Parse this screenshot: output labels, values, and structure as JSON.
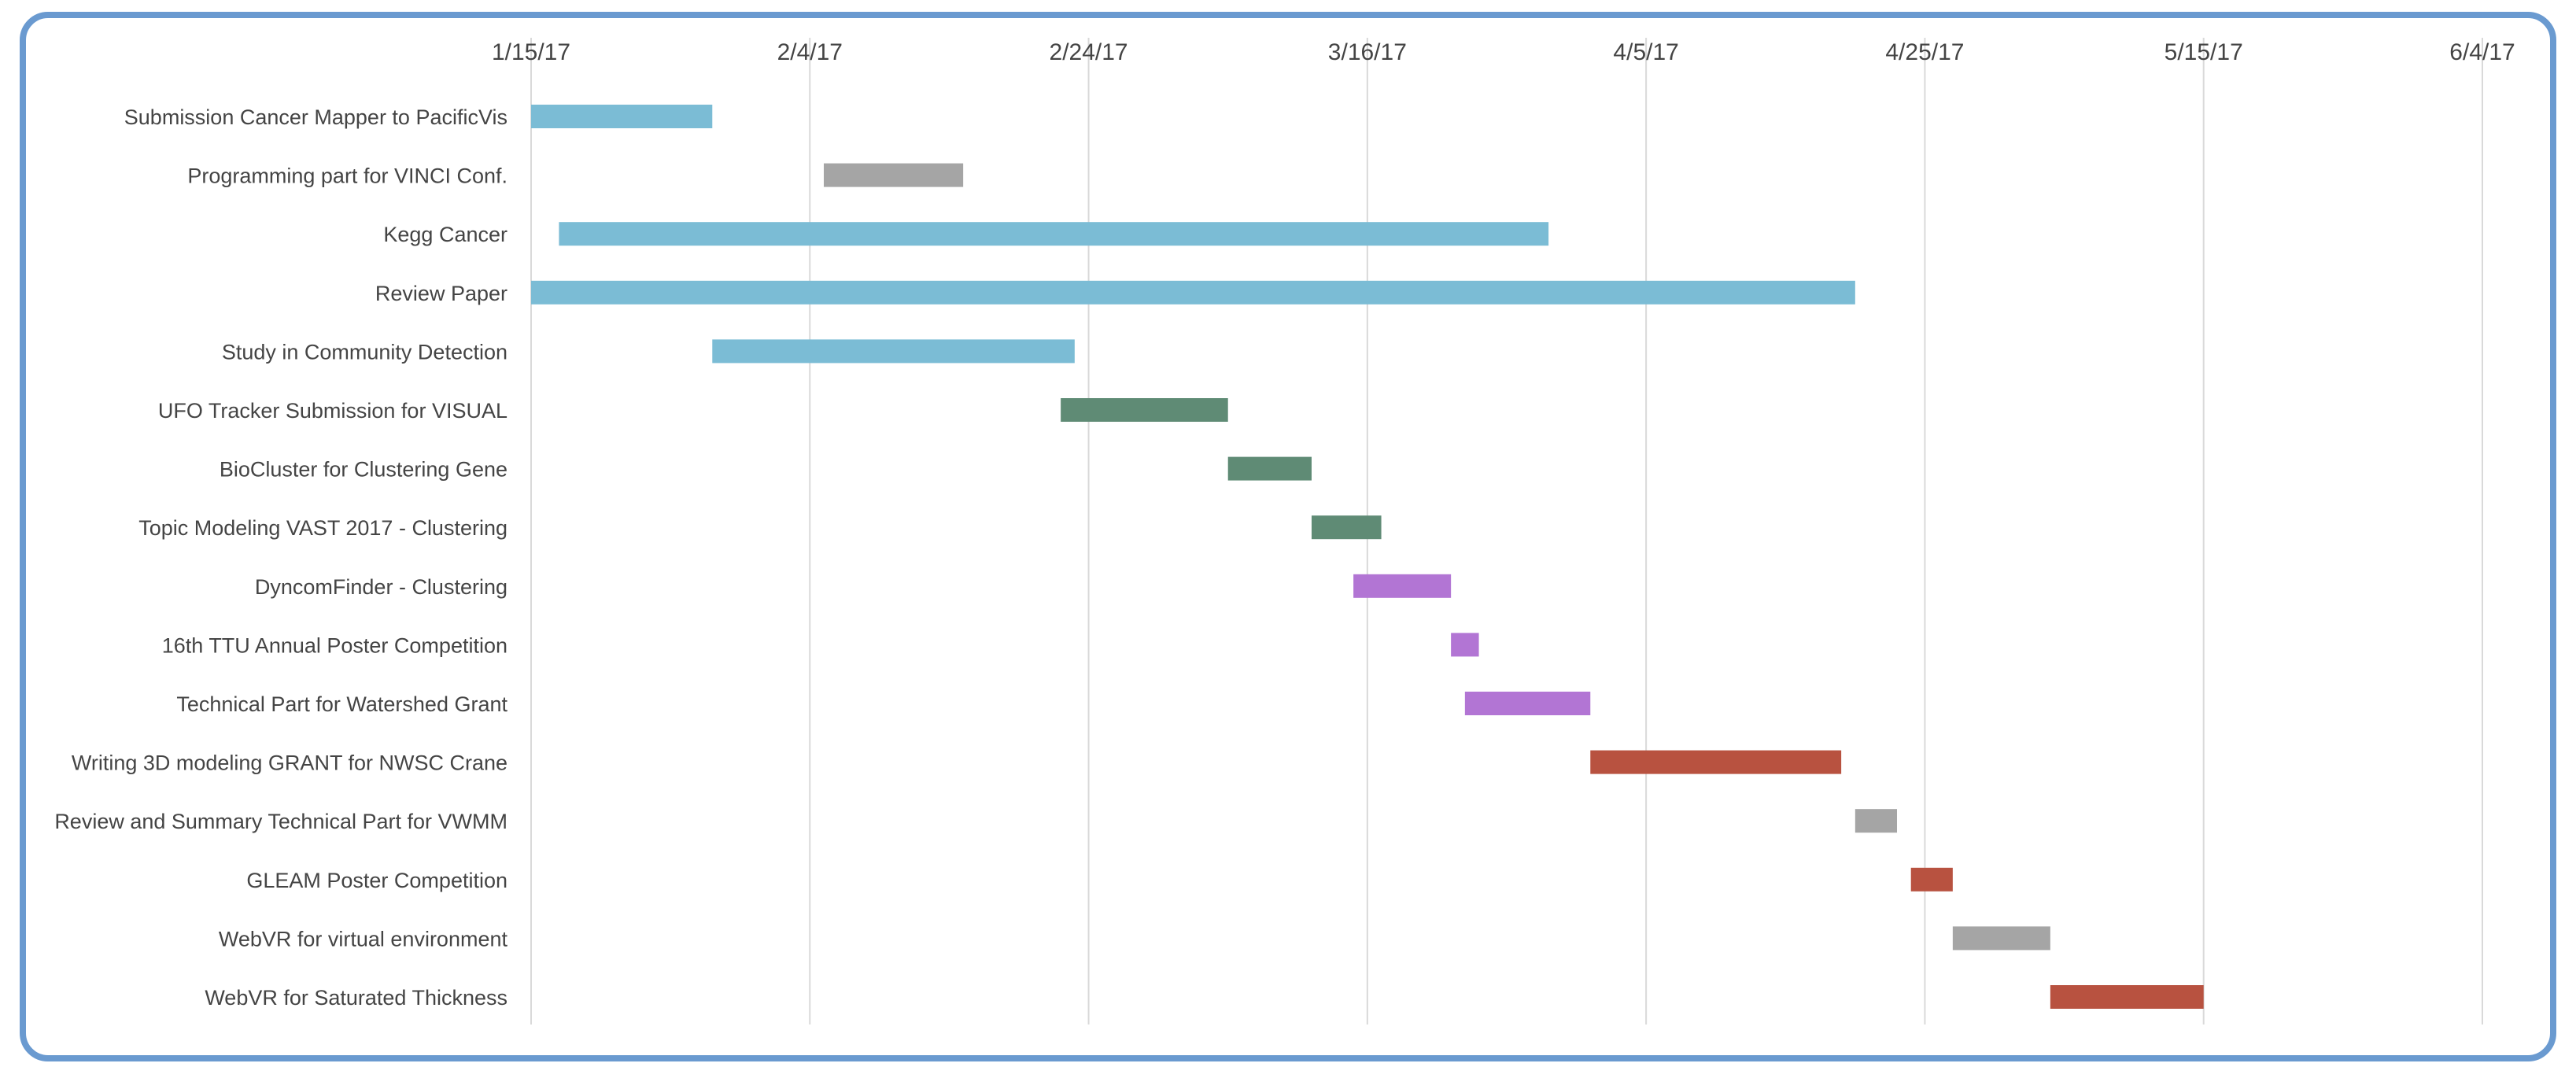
{
  "chart_data": {
    "type": "bar",
    "orientation": "horizontal",
    "subtype": "gantt",
    "title": "",
    "xlabel": "",
    "ylabel": "",
    "grid": true,
    "x_axis_position": "top",
    "x_ticks": [
      "1/15/17",
      "2/4/17",
      "2/24/17",
      "3/16/17",
      "4/5/17",
      "4/25/17",
      "5/15/17",
      "6/4/17"
    ],
    "x_tick_dates": [
      "2017-01-15",
      "2017-02-04",
      "2017-02-24",
      "2017-03-16",
      "2017-04-05",
      "2017-04-25",
      "2017-05-15",
      "2017-06-04"
    ],
    "xlim": [
      "2017-01-15",
      "2017-06-04"
    ],
    "tasks": [
      {
        "label": "Submission Cancer Mapper to PacificVis",
        "start": "2017-01-15",
        "end": "2017-01-28",
        "color": "#7bbcd5"
      },
      {
        "label": "Programming part for VINCI Conf.",
        "start": "2017-02-05",
        "end": "2017-02-15",
        "color": "#a5a5a5"
      },
      {
        "label": "Kegg Cancer",
        "start": "2017-01-17",
        "end": "2017-03-29",
        "color": "#7bbcd5"
      },
      {
        "label": "Review Paper",
        "start": "2017-01-15",
        "end": "2017-04-20",
        "color": "#7bbcd5"
      },
      {
        "label": "Study in Community Detection",
        "start": "2017-01-28",
        "end": "2017-02-23",
        "color": "#7bbcd5"
      },
      {
        "label": "UFO Tracker Submission for VISUAL",
        "start": "2017-02-22",
        "end": "2017-03-06",
        "color": "#5f8b75"
      },
      {
        "label": "BioCluster for Clustering Gene",
        "start": "2017-03-06",
        "end": "2017-03-12",
        "color": "#5f8b75"
      },
      {
        "label": "Topic Modeling VAST 2017 - Clustering",
        "start": "2017-03-12",
        "end": "2017-03-17",
        "color": "#5f8b75"
      },
      {
        "label": "DyncomFinder - Clustering ",
        "start": "2017-03-15",
        "end": "2017-03-22",
        "color": "#b275d4"
      },
      {
        "label": "16th TTU Annual Poster Competition",
        "start": "2017-03-22",
        "end": "2017-03-24",
        "color": "#b275d4"
      },
      {
        "label": "Technical Part for Watershed Grant",
        "start": "2017-03-23",
        "end": "2017-04-01",
        "color": "#b275d4"
      },
      {
        "label": "Writing 3D modeling GRANT for NWSC Crane",
        "start": "2017-04-01",
        "end": "2017-04-19",
        "color": "#b85240"
      },
      {
        "label": "Review and Summary Technical Part for VWMM",
        "start": "2017-04-20",
        "end": "2017-04-23",
        "color": "#a5a5a5"
      },
      {
        "label": "GLEAM Poster Competition",
        "start": "2017-04-24",
        "end": "2017-04-27",
        "color": "#b85240"
      },
      {
        "label": "WebVR for virtual environment",
        "start": "2017-04-27",
        "end": "2017-05-04",
        "color": "#a5a5a5"
      },
      {
        "label": "WebVR for Saturated Thickness",
        "start": "2017-05-04",
        "end": "2017-05-15",
        "color": "#b85240"
      }
    ]
  }
}
